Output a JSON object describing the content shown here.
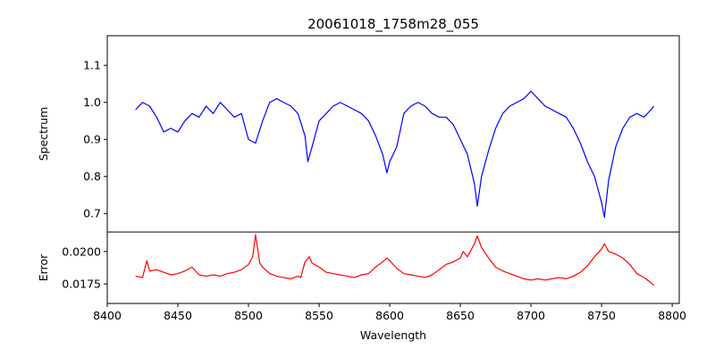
{
  "chart_data": [
    {
      "type": "line",
      "title": "20061018_1758m28_055",
      "xlabel": "",
      "ylabel": "Spectrum",
      "xlim": [
        8400,
        8805
      ],
      "ylim": [
        0.65,
        1.18
      ],
      "xticks": [
        8400,
        8450,
        8500,
        8550,
        8600,
        8650,
        8700,
        8750,
        8800
      ],
      "yticks": [
        0.7,
        0.8,
        0.9,
        1.0,
        1.1
      ],
      "ytick_labels": [
        "0.7",
        "0.8",
        "0.9",
        "1.0",
        "1.1"
      ],
      "grid": false,
      "series": [
        {
          "color": "#0000ff",
          "x": [
            8420,
            8425,
            8430,
            8435,
            8440,
            8445,
            8450,
            8455,
            8460,
            8465,
            8470,
            8475,
            8480,
            8485,
            8490,
            8495,
            8500,
            8505,
            8510,
            8515,
            8520,
            8525,
            8530,
            8535,
            8540,
            8542,
            8545,
            8550,
            8555,
            8560,
            8565,
            8570,
            8575,
            8580,
            8585,
            8590,
            8595,
            8598,
            8600,
            8605,
            8610,
            8615,
            8620,
            8625,
            8630,
            8635,
            8640,
            8645,
            8650,
            8655,
            8660,
            8662,
            8665,
            8670,
            8675,
            8680,
            8685,
            8690,
            8695,
            8700,
            8705,
            8710,
            8715,
            8720,
            8725,
            8730,
            8735,
            8740,
            8745,
            8750,
            8752,
            8755,
            8760,
            8765,
            8770,
            8775,
            8780,
            8785,
            8787
          ],
          "y": [
            0.98,
            1.0,
            0.99,
            0.96,
            0.92,
            0.93,
            0.92,
            0.95,
            0.97,
            0.96,
            0.99,
            0.97,
            1.0,
            0.98,
            0.96,
            0.97,
            0.9,
            0.89,
            0.95,
            1.0,
            1.01,
            1.0,
            0.99,
            0.97,
            0.91,
            0.84,
            0.88,
            0.95,
            0.97,
            0.99,
            1.0,
            0.99,
            0.98,
            0.97,
            0.95,
            0.91,
            0.86,
            0.81,
            0.84,
            0.88,
            0.97,
            0.99,
            1.0,
            0.99,
            0.97,
            0.96,
            0.96,
            0.94,
            0.9,
            0.86,
            0.78,
            0.72,
            0.8,
            0.87,
            0.93,
            0.97,
            0.99,
            1.0,
            1.01,
            1.03,
            1.01,
            0.99,
            0.98,
            0.97,
            0.96,
            0.93,
            0.89,
            0.84,
            0.8,
            0.73,
            0.69,
            0.79,
            0.88,
            0.93,
            0.96,
            0.97,
            0.96,
            0.98,
            0.99
          ]
        }
      ]
    },
    {
      "type": "line",
      "title": "",
      "xlabel": "Wavelength",
      "ylabel": "Error",
      "xlim": [
        8400,
        8805
      ],
      "ylim": [
        0.016,
        0.0215
      ],
      "xticks": [
        8400,
        8450,
        8500,
        8550,
        8600,
        8650,
        8700,
        8750,
        8800
      ],
      "yticks": [
        0.0175,
        0.02
      ],
      "ytick_labels": [
        "0.0175",
        "0.0200"
      ],
      "grid": false,
      "series": [
        {
          "color": "#ff0000",
          "x": [
            8420,
            8425,
            8428,
            8430,
            8435,
            8440,
            8445,
            8450,
            8455,
            8460,
            8465,
            8470,
            8475,
            8480,
            8485,
            8490,
            8495,
            8500,
            8503,
            8505,
            8508,
            8510,
            8515,
            8520,
            8525,
            8530,
            8535,
            8537,
            8540,
            8543,
            8545,
            8550,
            8555,
            8560,
            8565,
            8570,
            8575,
            8580,
            8585,
            8590,
            8595,
            8598,
            8600,
            8605,
            8610,
            8615,
            8620,
            8625,
            8630,
            8635,
            8640,
            8645,
            8650,
            8652,
            8655,
            8660,
            8662,
            8665,
            8670,
            8675,
            8680,
            8685,
            8690,
            8695,
            8700,
            8705,
            8710,
            8715,
            8720,
            8725,
            8730,
            8735,
            8740,
            8745,
            8750,
            8752,
            8755,
            8760,
            8765,
            8770,
            8775,
            8780,
            8785,
            8787
          ],
          "y": [
            0.0181,
            0.018,
            0.0193,
            0.0185,
            0.0186,
            0.0184,
            0.0182,
            0.0183,
            0.0185,
            0.0188,
            0.0182,
            0.0181,
            0.0182,
            0.0181,
            0.0183,
            0.0184,
            0.0186,
            0.019,
            0.0196,
            0.0213,
            0.0191,
            0.0188,
            0.0183,
            0.0181,
            0.018,
            0.0179,
            0.0181,
            0.018,
            0.0192,
            0.0196,
            0.0191,
            0.0188,
            0.0184,
            0.0183,
            0.0182,
            0.0181,
            0.018,
            0.0182,
            0.0183,
            0.0188,
            0.0192,
            0.0195,
            0.0193,
            0.0187,
            0.0183,
            0.0182,
            0.0181,
            0.018,
            0.0182,
            0.0186,
            0.019,
            0.0192,
            0.0195,
            0.02,
            0.0196,
            0.0206,
            0.0212,
            0.0203,
            0.0195,
            0.0188,
            0.0185,
            0.0183,
            0.0181,
            0.0179,
            0.0178,
            0.0179,
            0.0178,
            0.0179,
            0.018,
            0.0179,
            0.0181,
            0.0184,
            0.0189,
            0.0196,
            0.0202,
            0.0206,
            0.02,
            0.0198,
            0.0195,
            0.019,
            0.0183,
            0.018,
            0.0176,
            0.0174
          ]
        }
      ]
    }
  ]
}
